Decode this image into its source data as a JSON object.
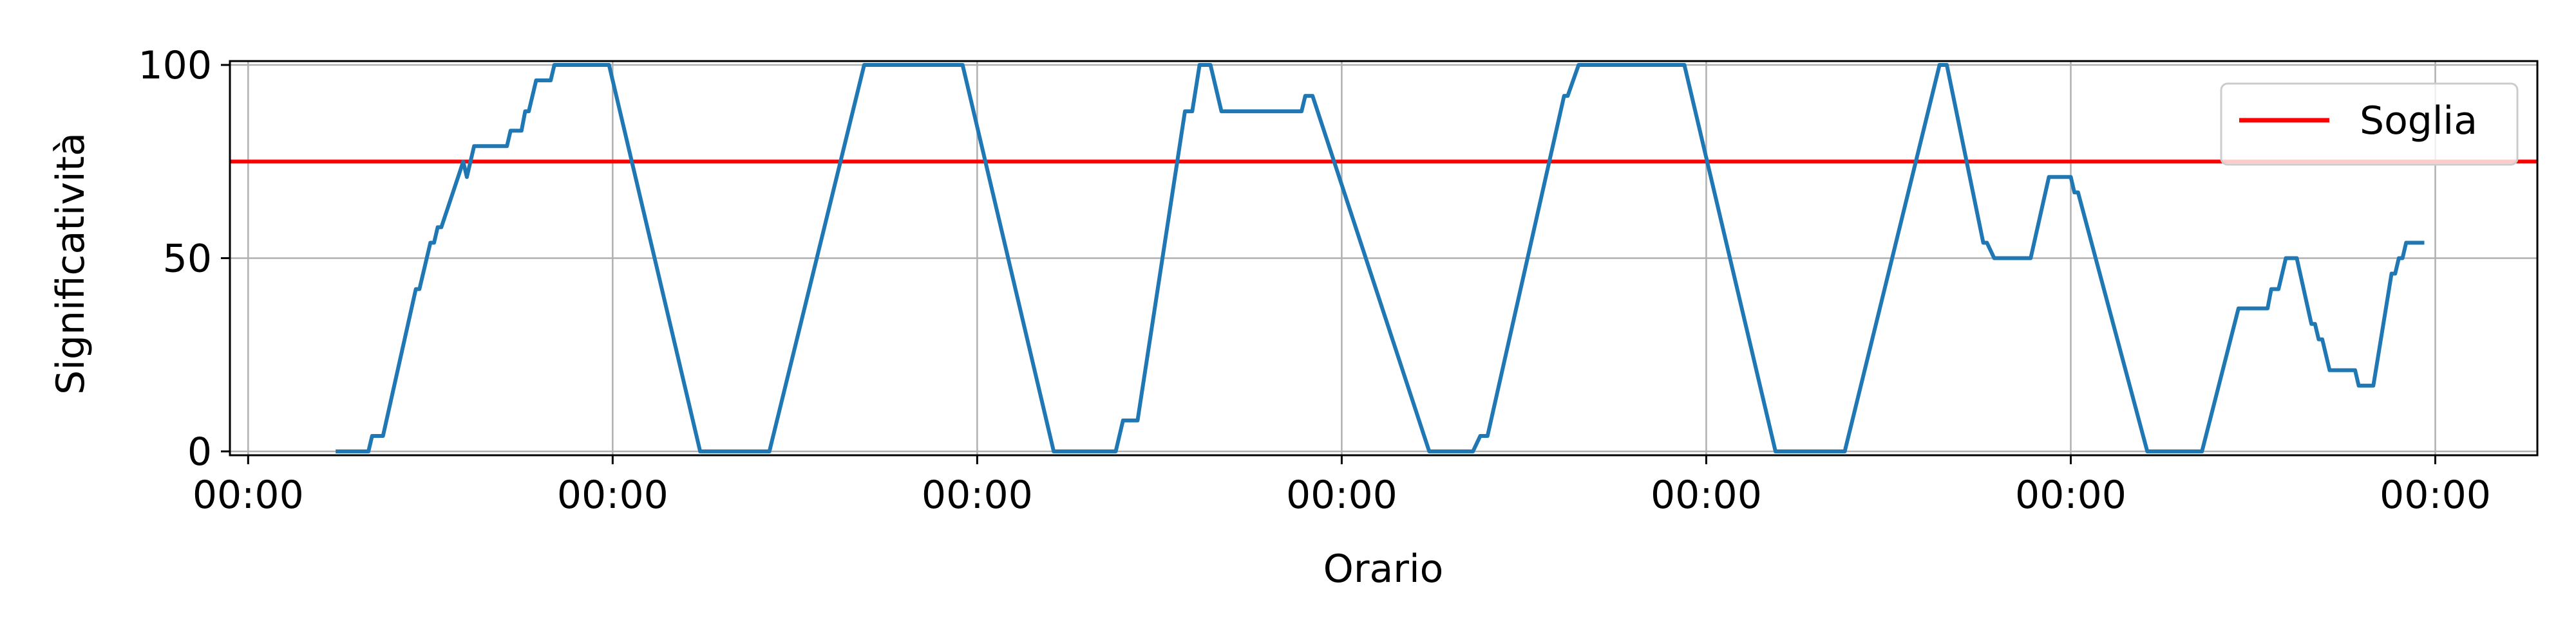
{
  "chart_data": {
    "type": "line",
    "xlabel": "Orario",
    "ylabel": "Significatività",
    "xlim": [
      -0.05,
      6.28
    ],
    "ylim": [
      -1,
      101
    ],
    "x_ticks": [
      0,
      1,
      2,
      3,
      4,
      5,
      6
    ],
    "x_tick_labels": [
      "00:00",
      "00:00",
      "00:00",
      "00:00",
      "00:00",
      "00:00",
      "00:00"
    ],
    "y_ticks": [
      0,
      50,
      100
    ],
    "y_tick_labels": [
      "0",
      "50",
      "100"
    ],
    "grid": true,
    "legend": {
      "location": "upper-right",
      "entries": [
        "Soglia"
      ]
    },
    "threshold": {
      "name": "Soglia",
      "value": 75,
      "color": "#ff0000"
    },
    "series": [
      {
        "color": "#1f77b4",
        "points": [
          [
            0.24,
            0
          ],
          [
            0.33,
            0
          ],
          [
            0.34,
            4
          ],
          [
            0.37,
            4
          ],
          [
            0.46,
            42
          ],
          [
            0.47,
            42
          ],
          [
            0.5,
            54
          ],
          [
            0.51,
            54
          ],
          [
            0.52,
            58
          ],
          [
            0.53,
            58
          ],
          [
            0.59,
            75
          ],
          [
            0.6,
            71
          ],
          [
            0.62,
            79
          ],
          [
            0.71,
            79
          ],
          [
            0.72,
            83
          ],
          [
            0.75,
            83
          ],
          [
            0.76,
            88
          ],
          [
            0.77,
            88
          ],
          [
            0.79,
            96
          ],
          [
            0.83,
            96
          ],
          [
            0.84,
            100
          ],
          [
            0.99,
            100
          ],
          [
            1.24,
            0
          ],
          [
            1.43,
            0
          ],
          [
            1.69,
            100
          ],
          [
            1.96,
            100
          ],
          [
            2.21,
            0
          ],
          [
            2.38,
            0
          ],
          [
            2.4,
            8
          ],
          [
            2.44,
            8
          ],
          [
            2.57,
            88
          ],
          [
            2.59,
            88
          ],
          [
            2.61,
            100
          ],
          [
            2.64,
            100
          ],
          [
            2.67,
            88
          ],
          [
            2.89,
            88
          ],
          [
            2.9,
            92
          ],
          [
            2.92,
            92
          ],
          [
            3.24,
            0
          ],
          [
            3.36,
            0
          ],
          [
            3.38,
            4
          ],
          [
            3.4,
            4
          ],
          [
            3.61,
            92
          ],
          [
            3.62,
            92
          ],
          [
            3.65,
            100
          ],
          [
            3.94,
            100
          ],
          [
            4.19,
            0
          ],
          [
            4.38,
            0
          ],
          [
            4.64,
            100
          ],
          [
            4.66,
            100
          ],
          [
            4.76,
            54
          ],
          [
            4.77,
            54
          ],
          [
            4.79,
            50
          ],
          [
            4.89,
            50
          ],
          [
            4.94,
            71
          ],
          [
            5.0,
            71
          ],
          [
            5.01,
            67
          ],
          [
            5.02,
            67
          ],
          [
            5.21,
            0
          ],
          [
            5.36,
            0
          ],
          [
            5.46,
            37
          ],
          [
            5.54,
            37
          ],
          [
            5.55,
            42
          ],
          [
            5.57,
            42
          ],
          [
            5.59,
            50
          ],
          [
            5.62,
            50
          ],
          [
            5.66,
            33
          ],
          [
            5.67,
            33
          ],
          [
            5.68,
            29
          ],
          [
            5.69,
            29
          ],
          [
            5.71,
            21
          ],
          [
            5.78,
            21
          ],
          [
            5.79,
            17
          ],
          [
            5.83,
            17
          ],
          [
            5.88,
            46
          ],
          [
            5.89,
            46
          ],
          [
            5.9,
            50
          ],
          [
            5.91,
            50
          ],
          [
            5.92,
            54
          ],
          [
            5.97,
            54
          ]
        ]
      }
    ]
  }
}
